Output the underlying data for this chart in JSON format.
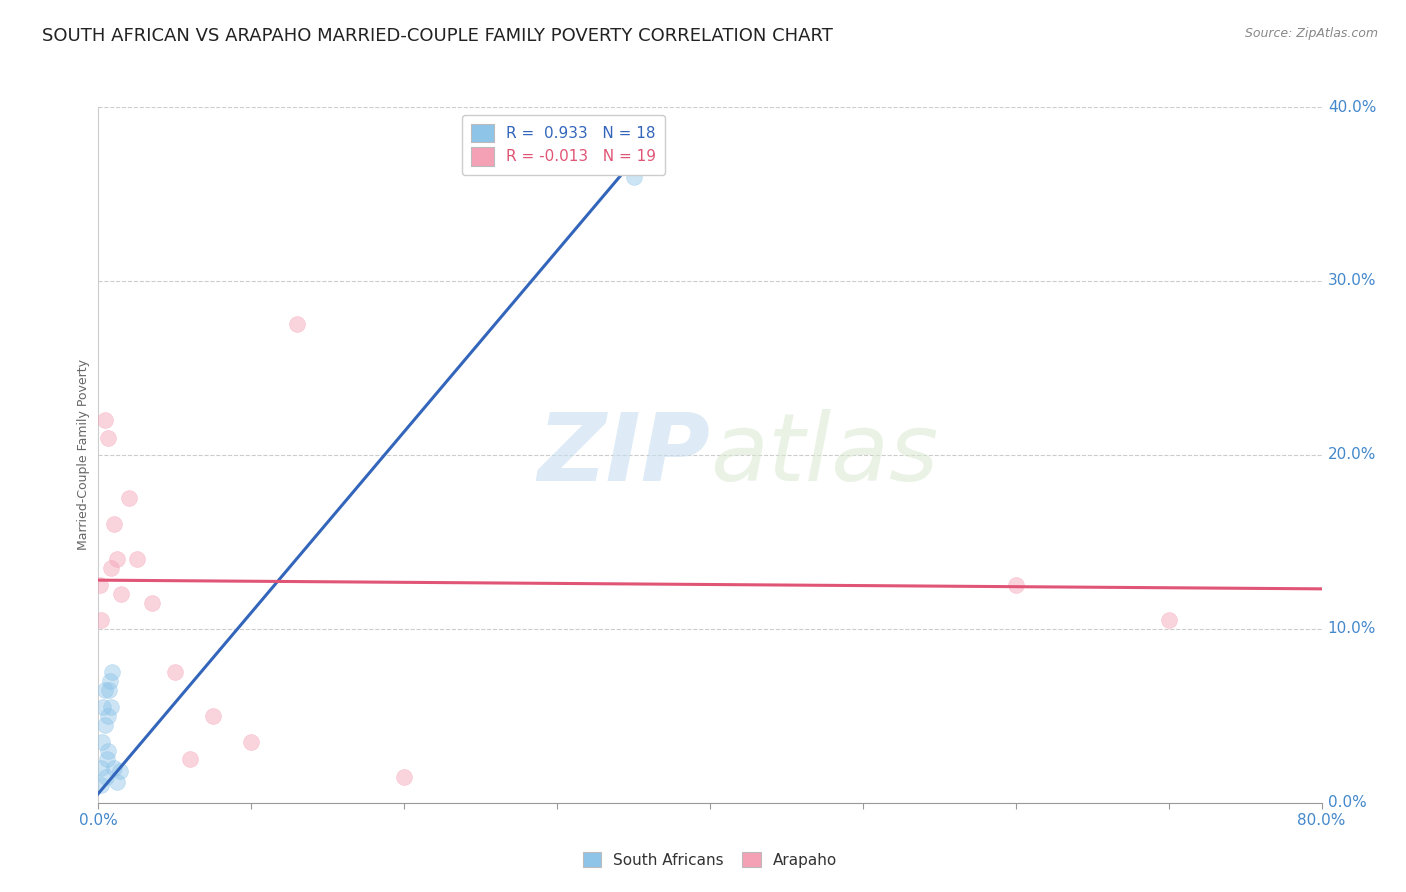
{
  "title": "SOUTH AFRICAN VS ARAPAHO MARRIED-COUPLE FAMILY POVERTY CORRELATION CHART",
  "source": "Source: ZipAtlas.com",
  "ylabel": "Married-Couple Family Poverty",
  "ylabel_right": [
    "40.0%",
    "30.0%",
    "20.0%",
    "10.0%",
    "0.0%"
  ],
  "ylabel_right_vals": [
    40,
    30,
    20,
    10,
    0
  ],
  "watermark": "ZIPatlas",
  "legend_r_blue": "R =  0.933",
  "legend_n_blue": "N = 18",
  "legend_r_pink": "R = -0.013",
  "legend_n_pink": "N = 19",
  "south_african_x": [
    0.15,
    0.2,
    0.25,
    0.3,
    0.4,
    0.45,
    0.5,
    0.55,
    0.6,
    0.65,
    0.7,
    0.75,
    0.8,
    0.9,
    1.0,
    1.2,
    1.4,
    35.0
  ],
  "south_african_y": [
    1.0,
    2.0,
    3.5,
    5.5,
    4.5,
    6.5,
    1.5,
    2.5,
    3.0,
    5.0,
    6.5,
    7.0,
    5.5,
    7.5,
    2.0,
    1.2,
    1.8,
    36.0
  ],
  "arapaho_x": [
    0.1,
    0.2,
    0.4,
    0.6,
    0.8,
    1.0,
    1.2,
    1.5,
    2.0,
    2.5,
    3.5,
    5.0,
    6.0,
    7.5,
    10.0,
    13.0,
    20.0,
    60.0,
    70.0
  ],
  "arapaho_y": [
    12.5,
    10.5,
    22.0,
    21.0,
    13.5,
    16.0,
    14.0,
    12.0,
    17.5,
    14.0,
    11.5,
    7.5,
    2.5,
    5.0,
    3.5,
    27.5,
    1.5,
    12.5,
    10.5
  ],
  "blue_line_x": [
    -1.0,
    36.5
  ],
  "blue_line_y": [
    -0.5,
    38.5
  ],
  "pink_line_x": [
    0.0,
    80.0
  ],
  "pink_line_y": [
    12.8,
    12.3
  ],
  "scatter_alpha": 0.45,
  "scatter_size": 130,
  "blue_color": "#8ec4e8",
  "pink_color": "#f4a0b5",
  "blue_line_color": "#3366bb",
  "pink_line_color": "#e05575",
  "xlim": [
    0,
    80
  ],
  "ylim": [
    0,
    40
  ],
  "x_major_ticks": [
    0,
    10,
    20,
    30,
    40,
    50,
    60,
    70,
    80
  ],
  "x_label_ticks": [
    0,
    80
  ],
  "x_label_values": [
    "0.0%",
    "80.0%"
  ],
  "background_color": "#ffffff",
  "grid_color": "#cccccc",
  "title_fontsize": 13,
  "axis_label_fontsize": 9,
  "tick_fontsize": 11
}
